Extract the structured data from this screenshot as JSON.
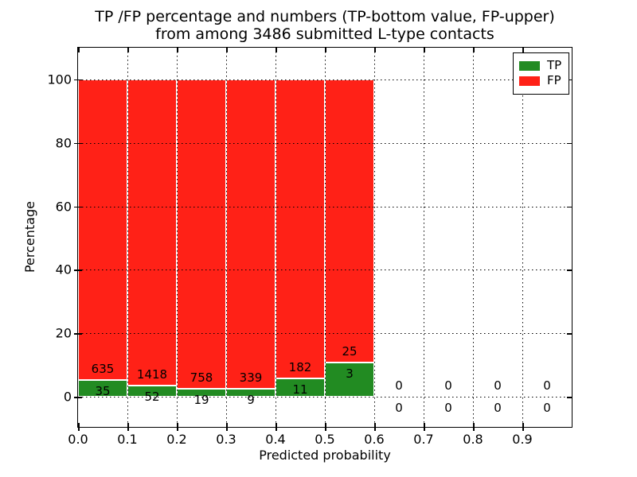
{
  "title": {
    "line1": "TP /FP percentage and numbers (TP-bottom value, FP-upper)",
    "line2": "from among 3486 submitted L-type contacts"
  },
  "chart_data": {
    "type": "bar",
    "stacked": true,
    "title": "TP /FP percentage and numbers (TP-bottom value, FP-upper) from among 3486 submitted L-type contacts",
    "xlabel": "Predicted probability",
    "ylabel": "Percentage",
    "total_contacts": 3486,
    "xlim": [
      0.0,
      1.0
    ],
    "ylim": [
      -9.5,
      110
    ],
    "grid": "dotted",
    "legend_position": "upper right",
    "bin_width": 0.1,
    "x_tick_values": [
      0.0,
      0.1,
      0.2,
      0.3,
      0.4,
      0.5,
      0.6,
      0.7,
      0.8,
      0.9
    ],
    "x_tick_labels": [
      "0.0",
      "0.1",
      "0.2",
      "0.3",
      "0.4",
      "0.5",
      "0.6",
      "0.7",
      "0.8",
      "0.9"
    ],
    "y_tick_values": [
      0,
      20,
      40,
      60,
      80,
      100
    ],
    "y_tick_labels": [
      "0",
      "20",
      "40",
      "60",
      "80",
      "100"
    ],
    "x_gridline_values": [
      0.1,
      0.2,
      0.3,
      0.4,
      0.5,
      0.6,
      0.7,
      0.8,
      0.9
    ],
    "bins": [
      {
        "range": "0.0-0.1",
        "x_start": 0.0,
        "tp": 35,
        "fp": 635,
        "tp_pct": 5.22,
        "fp_pct": 94.78
      },
      {
        "range": "0.1-0.2",
        "x_start": 0.1,
        "tp": 52,
        "fp": 1418,
        "tp_pct": 3.54,
        "fp_pct": 96.46
      },
      {
        "range": "0.2-0.3",
        "x_start": 0.2,
        "tp": 19,
        "fp": 758,
        "tp_pct": 2.45,
        "fp_pct": 97.55
      },
      {
        "range": "0.3-0.4",
        "x_start": 0.3,
        "tp": 9,
        "fp": 339,
        "tp_pct": 2.59,
        "fp_pct": 97.41
      },
      {
        "range": "0.4-0.5",
        "x_start": 0.4,
        "tp": 11,
        "fp": 182,
        "tp_pct": 5.7,
        "fp_pct": 94.3
      },
      {
        "range": "0.5-0.6",
        "x_start": 0.5,
        "tp": 3,
        "fp": 25,
        "tp_pct": 10.71,
        "fp_pct": 89.29
      },
      {
        "range": "0.6-0.7",
        "x_start": 0.6,
        "tp": 0,
        "fp": 0,
        "tp_pct": 0,
        "fp_pct": 0
      },
      {
        "range": "0.7-0.8",
        "x_start": 0.7,
        "tp": 0,
        "fp": 0,
        "tp_pct": 0,
        "fp_pct": 0
      },
      {
        "range": "0.8-0.9",
        "x_start": 0.8,
        "tp": 0,
        "fp": 0,
        "tp_pct": 0,
        "fp_pct": 0
      },
      {
        "range": "0.9-1.0",
        "x_start": 0.9,
        "tp": 0,
        "fp": 0,
        "tp_pct": 0,
        "fp_pct": 0
      }
    ],
    "legend": [
      {
        "label": "TP",
        "color": "#228b22"
      },
      {
        "label": "FP",
        "color": "#ff2117"
      }
    ],
    "colors": {
      "tp": "#228b22",
      "fp": "#ff2117",
      "bar_edge": "#ffffff",
      "grid": "#000000"
    }
  }
}
